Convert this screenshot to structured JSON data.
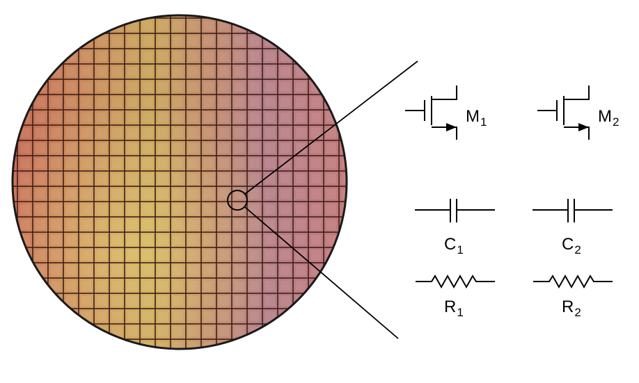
{
  "diagram": {
    "wafer": {
      "has_die_grid": true,
      "has_zoom_circle": true
    },
    "components": [
      {
        "kind": "mosfet",
        "letter": "M",
        "index": "1"
      },
      {
        "kind": "mosfet",
        "letter": "M",
        "index": "2"
      },
      {
        "kind": "capacitor",
        "letter": "C",
        "index": "1"
      },
      {
        "kind": "capacitor",
        "letter": "C",
        "index": "2"
      },
      {
        "kind": "resistor",
        "letter": "R",
        "index": "1"
      },
      {
        "kind": "resistor",
        "letter": "R",
        "index": "2"
      }
    ]
  }
}
